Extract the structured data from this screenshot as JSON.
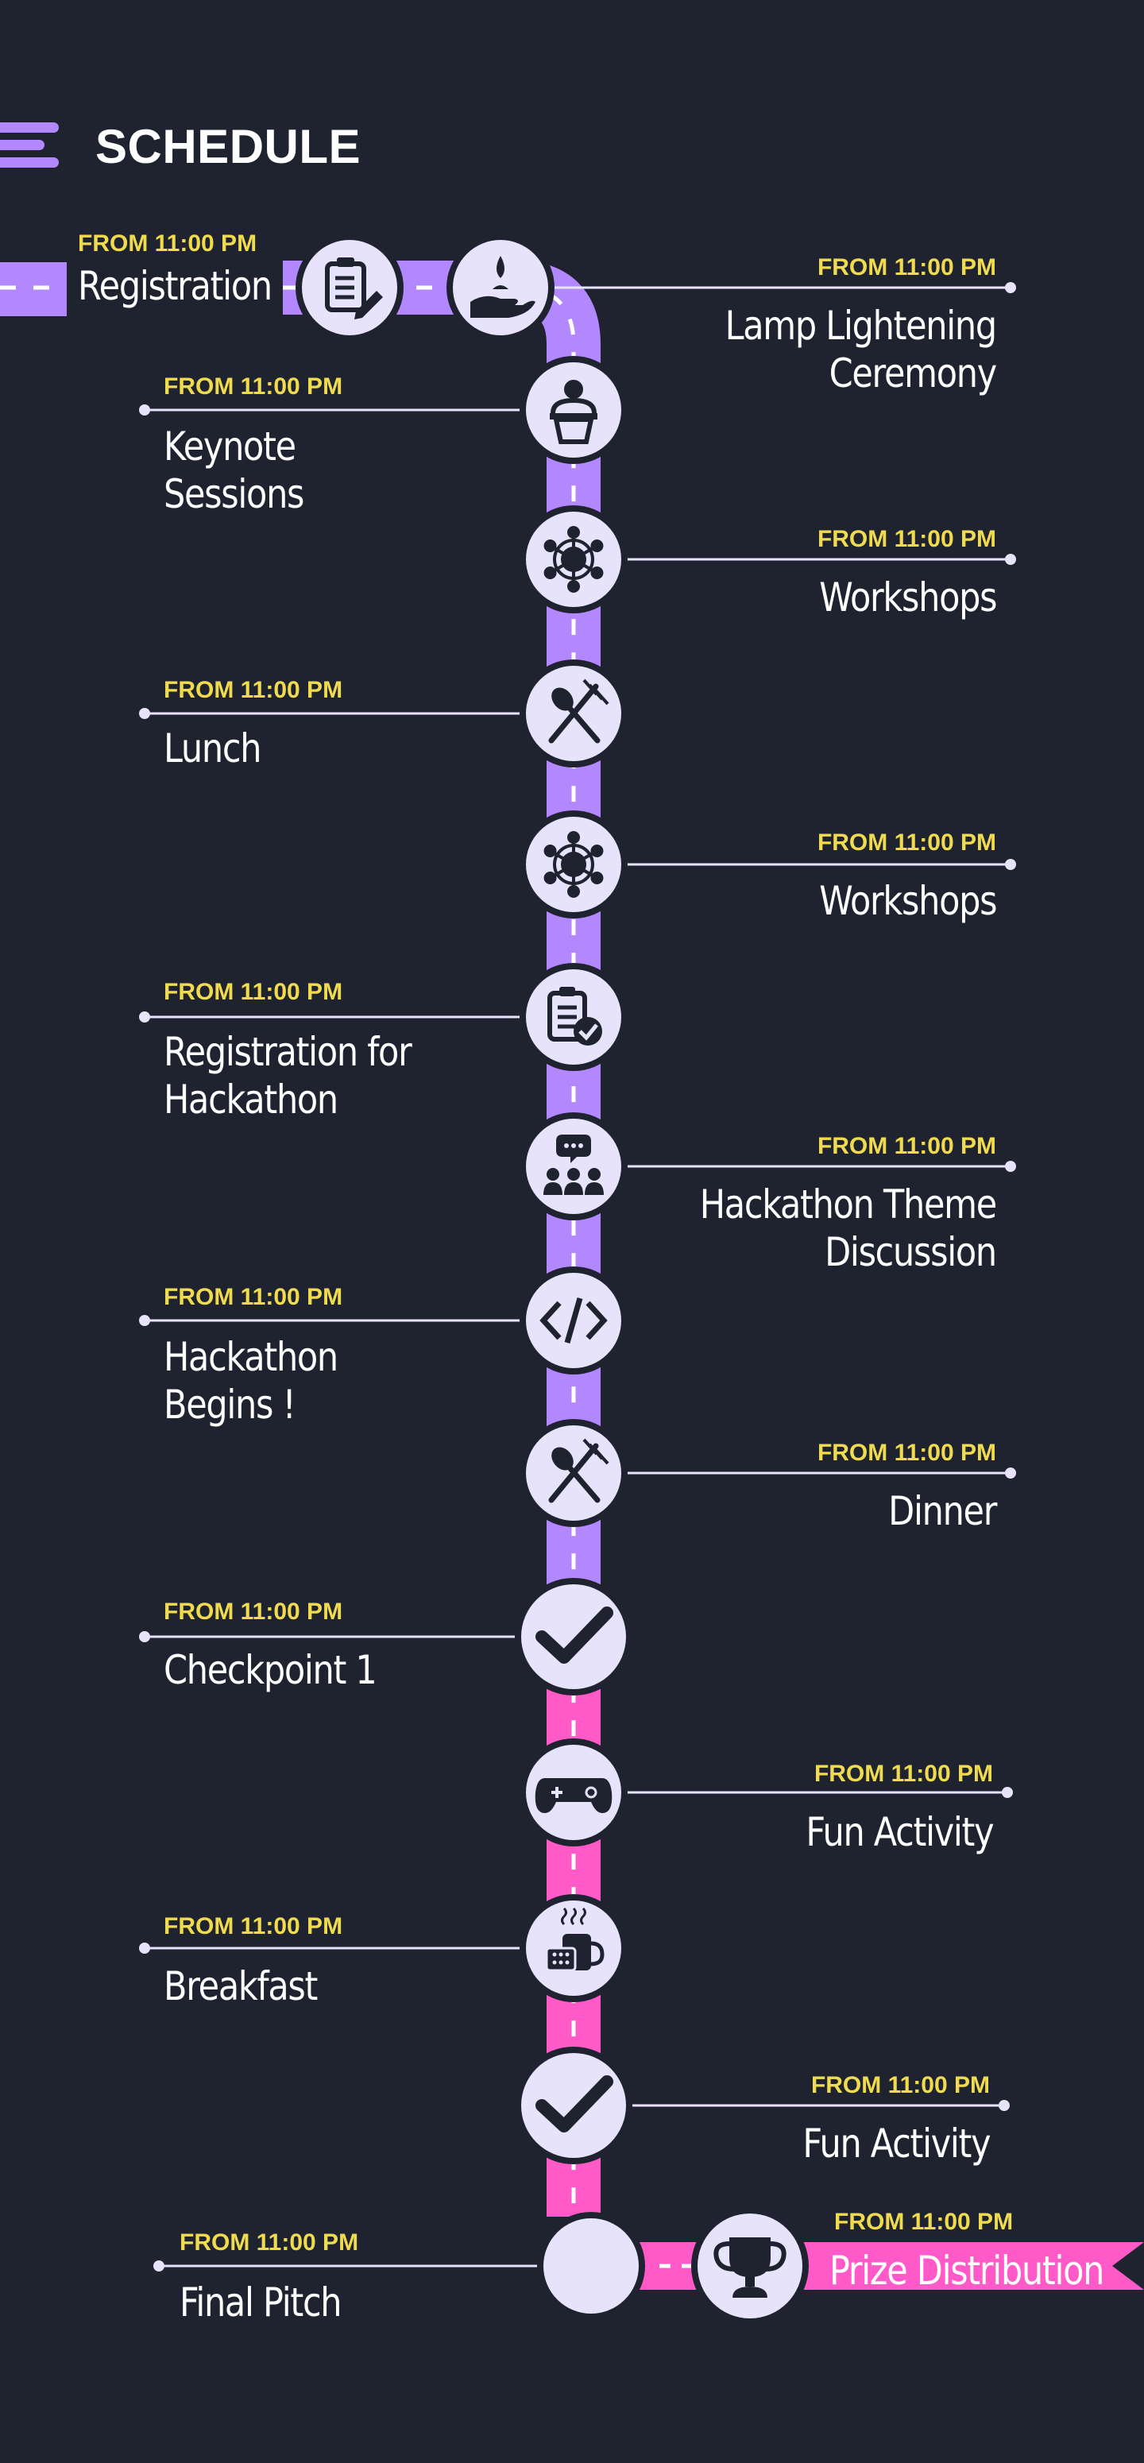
{
  "header": {
    "title": "SCHEDULE",
    "menu_icon": "menu-icon"
  },
  "colors": {
    "background": "#1f2330",
    "track_purple": "#b388ff",
    "track_pink": "#ff5ac8",
    "node_fill": "#e6e3fb",
    "icon_color": "#1f2330",
    "time_text": "#f0db4f",
    "title_text": "#ffffff",
    "connector_line": "#e6e3fb"
  },
  "events": [
    {
      "key": "registration",
      "time": "FROM 11:00 PM",
      "title": [
        "Registration"
      ],
      "icon": "clipboard-pen-icon"
    },
    {
      "key": "lamp-lightening",
      "time": "FROM 11:00 PM",
      "title": [
        "Lamp Lightening",
        "Ceremony"
      ],
      "icon": "hand-lamp-icon"
    },
    {
      "key": "keynote",
      "time": "FROM 11:00 PM",
      "title": [
        "Keynote",
        "Sessions"
      ],
      "icon": "speaker-podium-icon"
    },
    {
      "key": "workshops-1",
      "time": "FROM 11:00 PM",
      "title": [
        "Workshops"
      ],
      "icon": "team-network-icon"
    },
    {
      "key": "lunch",
      "time": "FROM 11:00 PM",
      "title": [
        "Lunch"
      ],
      "icon": "fork-spoon-icon"
    },
    {
      "key": "workshops-2",
      "time": "FROM 11:00 PM",
      "title": [
        "Workshops"
      ],
      "icon": "team-network-icon"
    },
    {
      "key": "hackathon-registration",
      "time": "FROM 11:00 PM",
      "title": [
        "Registration for",
        "Hackathon"
      ],
      "icon": "clipboard-check-icon"
    },
    {
      "key": "hackathon-theme",
      "time": "FROM 11:00 PM",
      "title": [
        "Hackathon Theme",
        "Discussion"
      ],
      "icon": "group-discussion-icon"
    },
    {
      "key": "hackathon-begins",
      "time": "FROM 11:00 PM",
      "title": [
        "Hackathon",
        "Begins !"
      ],
      "icon": "code-brackets-icon"
    },
    {
      "key": "dinner",
      "time": "FROM 11:00 PM",
      "title": [
        "Dinner"
      ],
      "icon": "fork-spoon-icon"
    },
    {
      "key": "checkpoint-1",
      "time": "FROM 11:00 PM",
      "title": [
        "Checkpoint 1"
      ],
      "icon": "checkmark-icon"
    },
    {
      "key": "fun-activity-1",
      "time": "FROM 11:00 PM",
      "title": [
        "Fun Activity"
      ],
      "icon": "gamepad-icon"
    },
    {
      "key": "breakfast",
      "time": "FROM 11:00 PM",
      "title": [
        "Breakfast"
      ],
      "icon": "coffee-cup-icon"
    },
    {
      "key": "fun-activity-2",
      "time": "FROM 11:00 PM",
      "title": [
        "Fun Activity"
      ],
      "icon": "checkmark-icon"
    },
    {
      "key": "final-pitch",
      "time": "FROM 11:00 PM",
      "title": [
        "Final Pitch"
      ],
      "icon": "plain-node-icon"
    },
    {
      "key": "prize-distribution",
      "time": "FROM 11:00 PM",
      "title": [
        "Prize Distribution"
      ],
      "icon": "trophy-icon"
    }
  ]
}
